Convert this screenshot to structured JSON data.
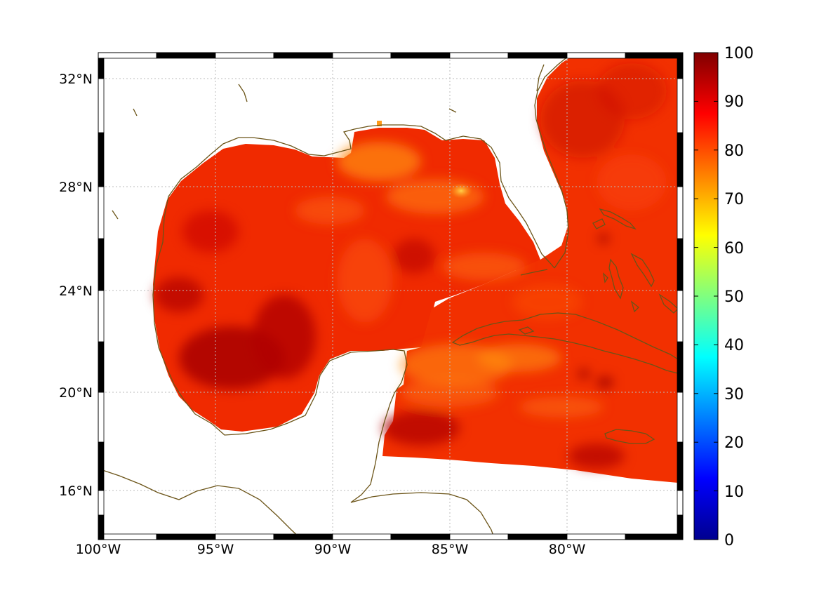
{
  "map": {
    "projection": "mercator",
    "lon_range": [
      -100,
      -75.5
    ],
    "lat_range": [
      14.3,
      32.9
    ],
    "lon_ticks": [
      {
        "value": -100,
        "label": "100°W"
      },
      {
        "value": -95,
        "label": "95°W"
      },
      {
        "value": -90,
        "label": "90°W"
      },
      {
        "value": -85,
        "label": "85°W"
      },
      {
        "value": -80,
        "label": "80°W"
      }
    ],
    "lat_ticks": [
      {
        "value": 16,
        "label": "16°N"
      },
      {
        "value": 20,
        "label": "20°N"
      },
      {
        "value": 24,
        "label": "24°N"
      },
      {
        "value": 28,
        "label": "28°N"
      },
      {
        "value": 32,
        "label": "32°N"
      }
    ],
    "grid": "dotted",
    "coastline_color": "#6b5418",
    "frame_style": "alternating black/white border"
  },
  "colorbar": {
    "colormap": "jet",
    "range": [
      0,
      100
    ],
    "ticks": [
      "0",
      "10",
      "20",
      "30",
      "40",
      "50",
      "60",
      "70",
      "80",
      "90",
      "100"
    ]
  },
  "field": {
    "typical_value": 85,
    "range_shown": [
      72,
      100
    ],
    "max_regions": [
      "central western Gulf (about 93°W 22°N)",
      "Yucatan Channel / NW Caribbean"
    ],
    "min_regions": [
      "north-central Gulf near 84.5°W 27.8°N (about 72)"
    ]
  }
}
